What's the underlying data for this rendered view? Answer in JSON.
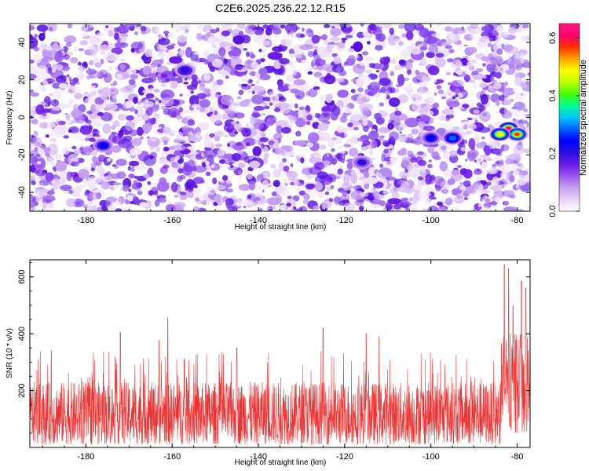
{
  "chart_data": [
    {
      "type": "heatmap",
      "title": "C2E6.2025.236.22.12.R15",
      "xlabel": "Height of straight line (km)",
      "ylabel": "Frequency (Hz)",
      "xlim": [
        -193,
        -77
      ],
      "ylim": [
        -50,
        50
      ],
      "xticks": [
        -180,
        -160,
        -140,
        -120,
        -100,
        -80
      ],
      "yticks": [
        -40,
        -20,
        0,
        20,
        40
      ],
      "colorbar": {
        "label": "Normalized spectral amplitude",
        "range": [
          0.0,
          0.65
        ],
        "ticks": [
          0.0,
          0.2,
          0.4,
          0.6
        ],
        "tick_labels": [
          "0.0",
          "0.2",
          "0.4",
          "0.6"
        ],
        "colormap": [
          "#ffffff",
          "#e8d2f5",
          "#c8a0f0",
          "#9a55f0",
          "#6a1ae6",
          "#2a10e0",
          "#0000ff",
          "#0060ff",
          "#00c8ff",
          "#00ff90",
          "#40ff00",
          "#c0ff00",
          "#ffff00",
          "#ffa000",
          "#ff3000",
          "#ff0070",
          "#ff1a80"
        ]
      },
      "hotspots": [
        {
          "x": -82,
          "y": -6,
          "amp": 0.6
        },
        {
          "x": -80,
          "y": -9,
          "amp": 0.55
        },
        {
          "x": -84,
          "y": -9,
          "amp": 0.5
        },
        {
          "x": -95,
          "y": -11,
          "amp": 0.3
        },
        {
          "x": -100,
          "y": -11,
          "amp": 0.25
        },
        {
          "x": -176,
          "y": -15,
          "amp": 0.25
        },
        {
          "x": -157,
          "y": 25,
          "amp": 0.22
        },
        {
          "x": -116,
          "y": -24,
          "amp": 0.2
        }
      ]
    },
    {
      "type": "line",
      "xlabel": "Height of straight line (km)",
      "ylabel": "SNR (10 * v/v)",
      "xlim": [
        -193,
        -77
      ],
      "ylim": [
        0,
        660
      ],
      "xticks": [
        -180,
        -160,
        -140,
        -120,
        -100,
        -80
      ],
      "yticks": [
        200,
        400,
        600
      ],
      "color": "#ee3333",
      "series": [
        {
          "name": "SNR",
          "baseline_range": [
            10,
            230
          ],
          "peaks": [
            {
              "x": -161,
              "y": 455
            },
            {
              "x": -163,
              "y": 375
            },
            {
              "x": -172,
              "y": 405
            },
            {
              "x": -125,
              "y": 420
            },
            {
              "x": -115,
              "y": 400
            },
            {
              "x": -112,
              "y": 390
            },
            {
              "x": -83,
              "y": 645
            },
            {
              "x": -82,
              "y": 630
            },
            {
              "x": -79,
              "y": 585
            },
            {
              "x": -78,
              "y": 560
            },
            {
              "x": -81,
              "y": 500
            },
            {
              "x": -188,
              "y": 340
            },
            {
              "x": -145,
              "y": 350
            }
          ]
        }
      ]
    }
  ]
}
